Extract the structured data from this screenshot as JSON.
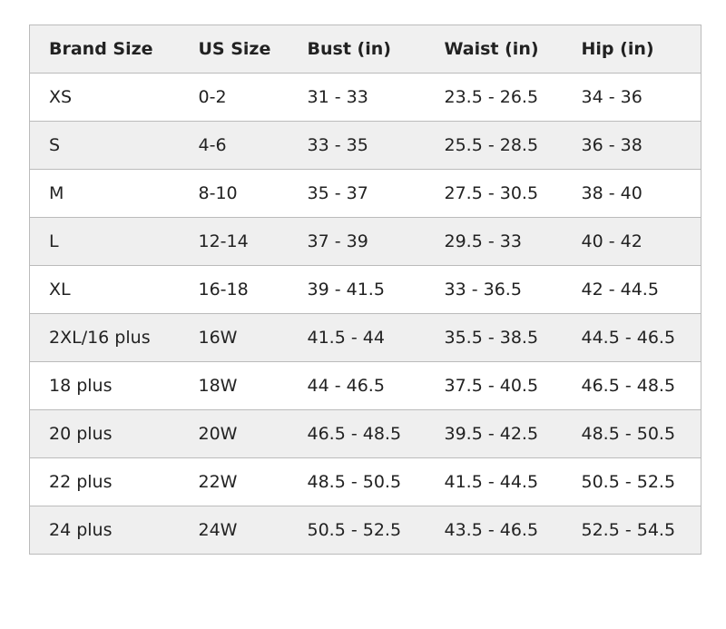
{
  "table": {
    "header": [
      "Brand Size",
      "US Size",
      "Bust (in)",
      "Waist (in)",
      "Hip (in)"
    ],
    "rows": [
      [
        "XS",
        "0-2",
        "31 - 33",
        "23.5 - 26.5",
        "34 - 36"
      ],
      [
        "S",
        "4-6",
        "33 - 35",
        "25.5 - 28.5",
        "36 - 38"
      ],
      [
        "M",
        "8-10",
        "35 - 37",
        "27.5 - 30.5",
        "38 - 40"
      ],
      [
        "L",
        "12-14",
        "37 - 39",
        "29.5 - 33",
        "40 - 42"
      ],
      [
        "XL",
        "16-18",
        "39 - 41.5",
        "33 - 36.5",
        "42 - 44.5"
      ],
      [
        "2XL/16 plus",
        "16W",
        "41.5 - 44",
        "35.5 - 38.5",
        "44.5 - 46.5"
      ],
      [
        "18 plus",
        "18W",
        "44 - 46.5",
        "37.5 - 40.5",
        "46.5 - 48.5"
      ],
      [
        "20 plus",
        "20W",
        "46.5 - 48.5",
        "39.5 - 42.5",
        "48.5 - 50.5"
      ],
      [
        "22 plus",
        "22W",
        "48.5 - 50.5",
        "41.5 - 44.5",
        "50.5 - 52.5"
      ],
      [
        "24 plus",
        "24W",
        "50.5 - 52.5",
        "43.5 - 46.5",
        "52.5 - 54.5"
      ]
    ]
  }
}
